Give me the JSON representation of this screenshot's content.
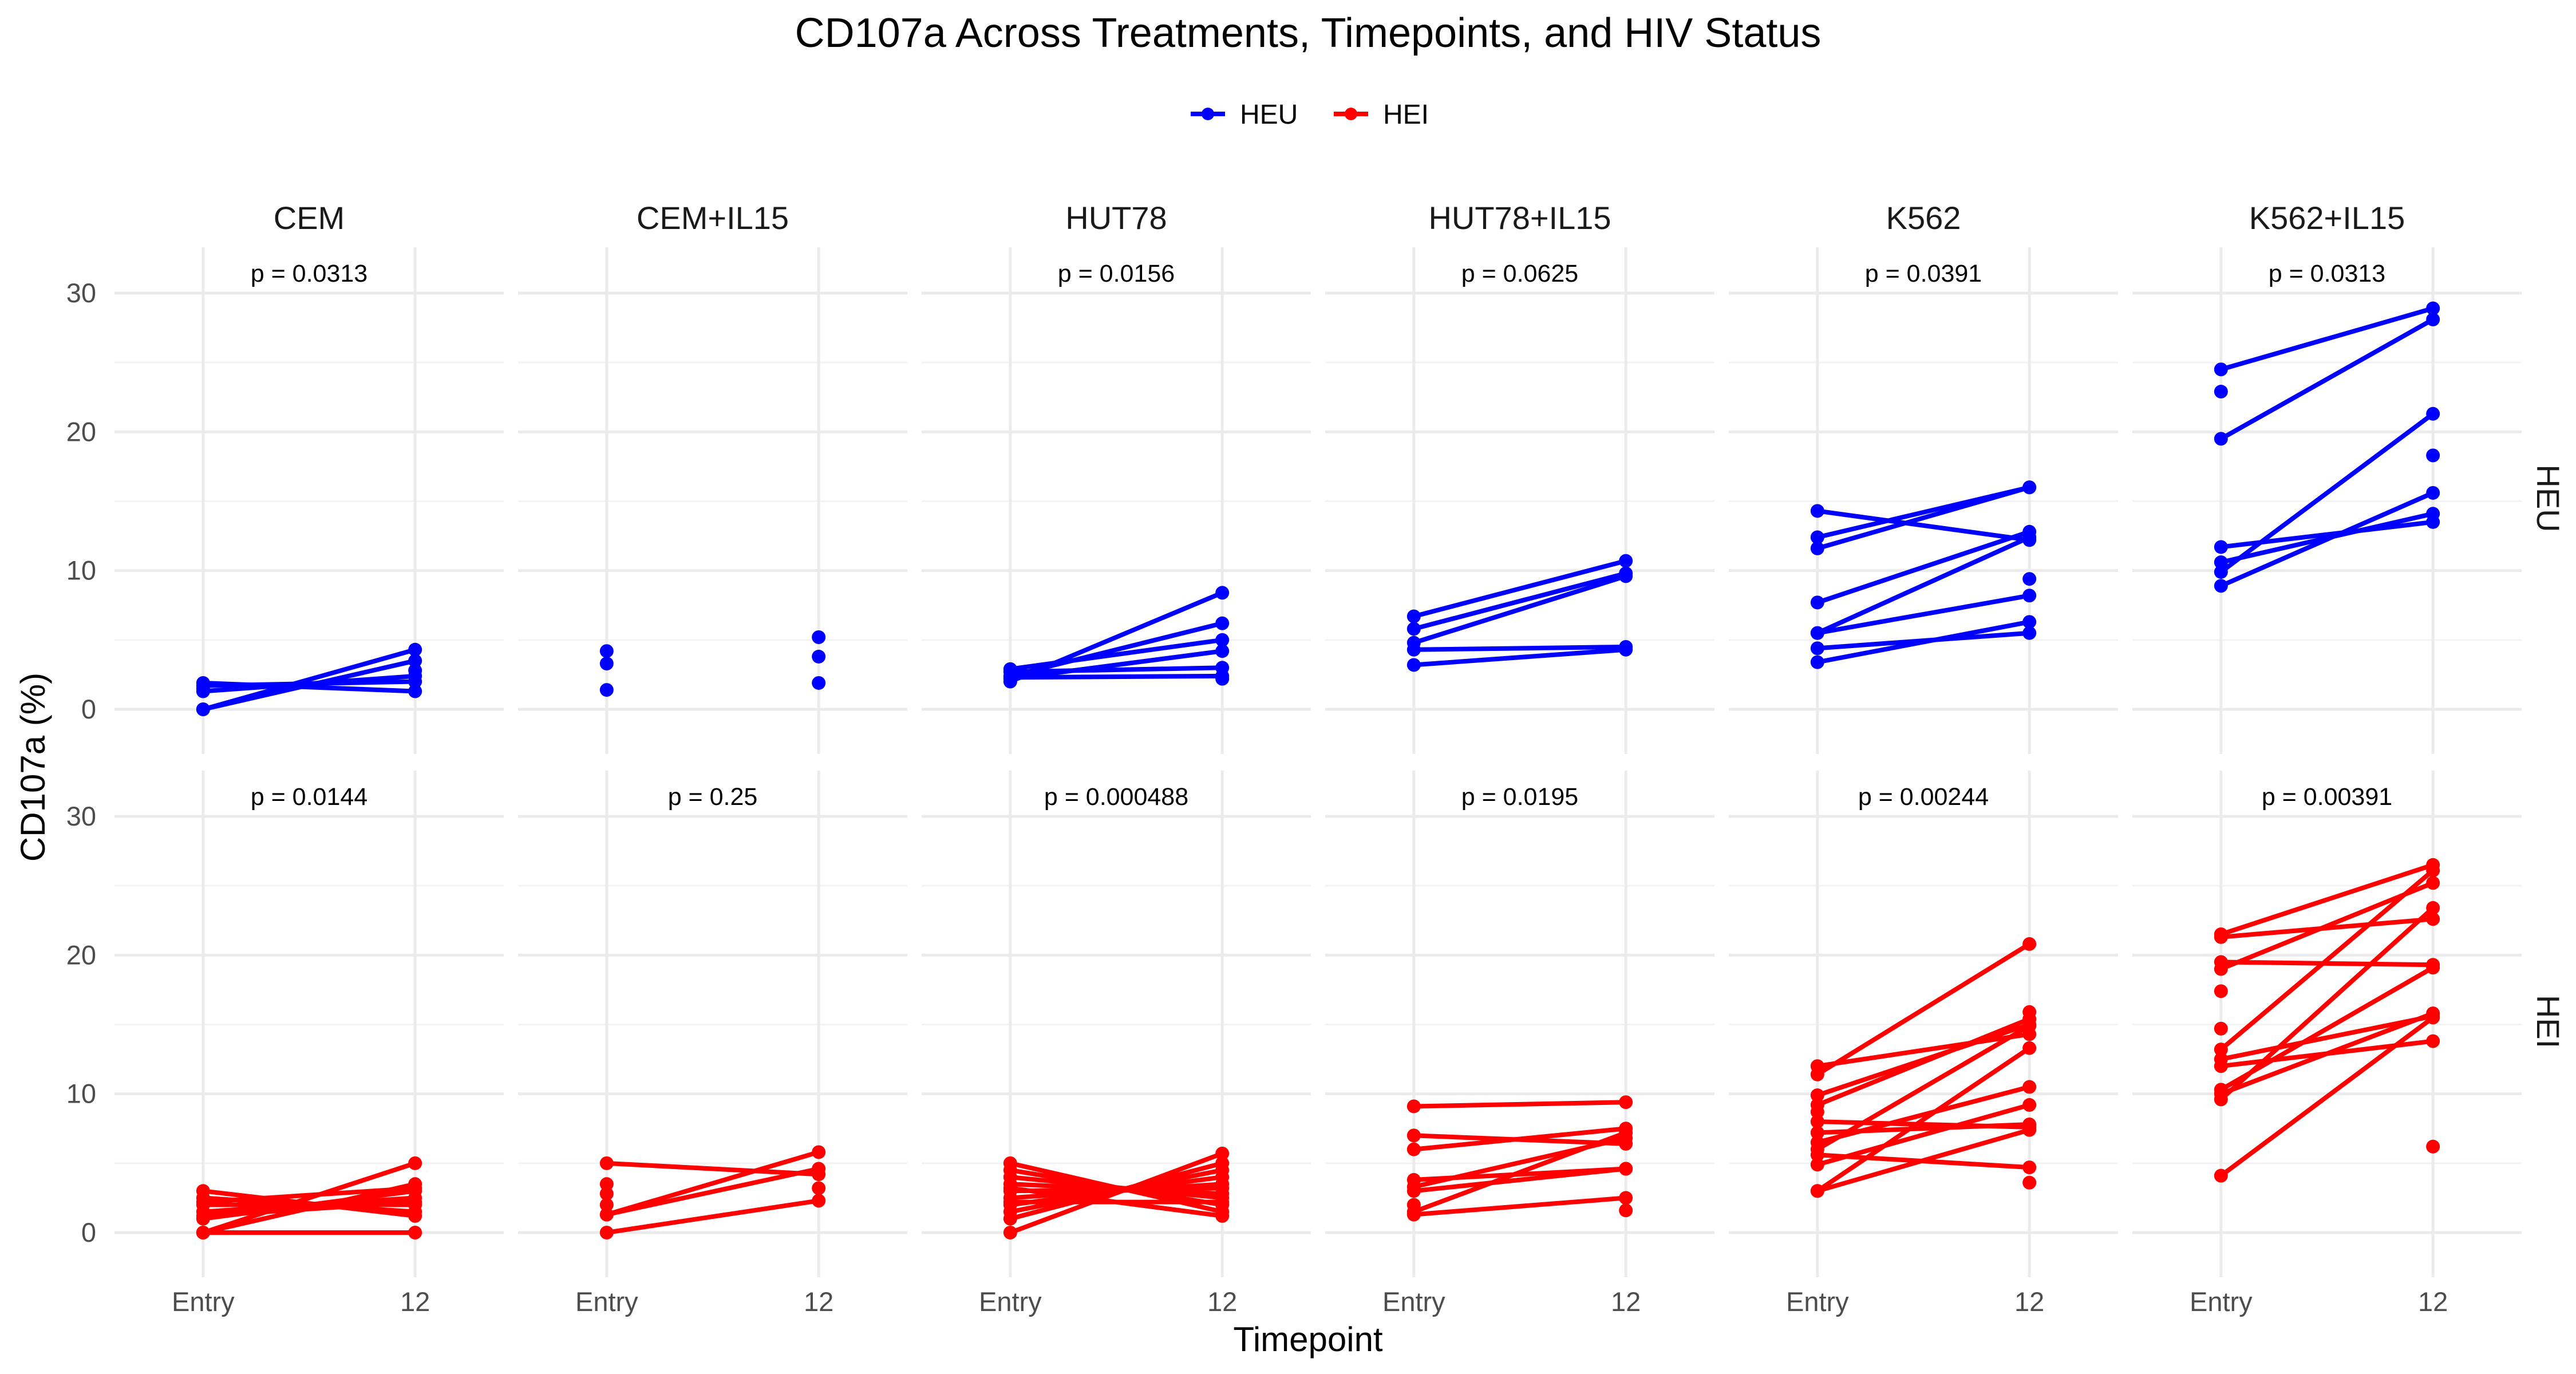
{
  "chart_data": {
    "type": "line",
    "title": "CD107a Across Treatments, Timepoints, and HIV Status",
    "xlabel": "Timepoint",
    "ylabel": "CD107a (%)",
    "x_categories": [
      "Entry",
      "12"
    ],
    "ylim": [
      0,
      30
    ],
    "y_ticks": [
      0,
      10,
      20,
      30
    ],
    "grid": true,
    "legend_position": "top",
    "legend": [
      {
        "name": "HEU",
        "color": "#0000ff"
      },
      {
        "name": "HEI",
        "color": "#ff0000"
      }
    ],
    "facet_columns": [
      "CEM",
      "CEM+IL15",
      "HUT78",
      "HUT78+IL15",
      "K562",
      "K562+IL15"
    ],
    "facet_rows": [
      "HEU",
      "HEI"
    ],
    "panels": [
      {
        "treatment": "CEM",
        "group": "HEU",
        "p_value": "p = 0.0313",
        "pairs": [
          [
            0.0,
            4.3
          ],
          [
            0.0,
            3.5
          ],
          [
            1.3,
            2.4
          ],
          [
            1.7,
            2.0
          ],
          [
            1.9,
            1.3
          ]
        ],
        "entry_only": [
          1.5
        ],
        "end_only": [
          2.8
        ]
      },
      {
        "treatment": "CEM+IL15",
        "group": "HEU",
        "p_value": "",
        "pairs": [],
        "entry_only": [
          4.2,
          3.3,
          1.4
        ],
        "end_only": [
          5.2,
          3.8,
          1.9
        ]
      },
      {
        "treatment": "HUT78",
        "group": "HEU",
        "p_value": "p = 0.0156",
        "pairs": [
          [
            2.0,
            8.4
          ],
          [
            2.4,
            6.2
          ],
          [
            2.9,
            5.0
          ],
          [
            2.2,
            4.2
          ],
          [
            2.7,
            3.0
          ],
          [
            2.3,
            2.4
          ]
        ],
        "entry_only": [],
        "end_only": [
          2.2
        ]
      },
      {
        "treatment": "HUT78+IL15",
        "group": "HEU",
        "p_value": "p = 0.0625",
        "pairs": [
          [
            6.7,
            10.7
          ],
          [
            5.8,
            9.8
          ],
          [
            4.8,
            9.6
          ],
          [
            4.3,
            4.5
          ],
          [
            3.2,
            4.3
          ]
        ],
        "entry_only": [],
        "end_only": []
      },
      {
        "treatment": "K562",
        "group": "HEU",
        "p_value": "p = 0.0391",
        "pairs": [
          [
            14.3,
            12.2
          ],
          [
            12.4,
            16.0
          ],
          [
            11.6,
            16.0
          ],
          [
            7.7,
            12.8
          ],
          [
            5.5,
            12.4
          ],
          [
            5.5,
            8.2
          ],
          [
            4.4,
            5.5
          ],
          [
            3.4,
            6.3
          ]
        ],
        "entry_only": [],
        "end_only": [
          9.4
        ]
      },
      {
        "treatment": "K562+IL15",
        "group": "HEU",
        "p_value": "p = 0.0313",
        "pairs": [
          [
            24.5,
            28.9
          ],
          [
            19.5,
            28.1
          ],
          [
            11.7,
            13.5
          ],
          [
            10.6,
            14.1
          ],
          [
            9.9,
            21.3
          ],
          [
            8.9,
            15.6
          ]
        ],
        "entry_only": [
          22.9
        ],
        "end_only": [
          18.3
        ]
      },
      {
        "treatment": "CEM",
        "group": "HEI",
        "p_value": "p = 0.0144",
        "pairs": [
          [
            0.0,
            5.0
          ],
          [
            0.0,
            3.5
          ],
          [
            1.0,
            3.0
          ],
          [
            1.5,
            2.5
          ],
          [
            2.0,
            2.0
          ],
          [
            2.5,
            1.5
          ],
          [
            3.0,
            1.2
          ],
          [
            0.0,
            0.0
          ],
          [
            2.2,
            3.2
          ],
          [
            1.2,
            2.2
          ]
        ],
        "entry_only": [],
        "end_only": []
      },
      {
        "treatment": "CEM+IL15",
        "group": "HEI",
        "p_value": "p = 0.25",
        "pairs": [
          [
            5.0,
            4.2
          ],
          [
            1.3,
            5.8
          ],
          [
            1.3,
            4.6
          ],
          [
            0.0,
            2.3
          ]
        ],
        "entry_only": [
          3.5,
          2.8,
          2.0
        ],
        "end_only": [
          3.2
        ]
      },
      {
        "treatment": "HUT78",
        "group": "HEI",
        "p_value": "p = 0.000488",
        "pairs": [
          [
            0.0,
            5.7
          ],
          [
            1.0,
            5.0
          ],
          [
            1.5,
            4.5
          ],
          [
            2.0,
            4.0
          ],
          [
            2.5,
            3.5
          ],
          [
            3.0,
            3.2
          ],
          [
            3.5,
            2.8
          ],
          [
            4.0,
            2.5
          ],
          [
            4.5,
            2.0
          ],
          [
            5.0,
            1.5
          ],
          [
            3.2,
            1.2
          ],
          [
            2.2,
            2.2
          ]
        ],
        "entry_only": [],
        "end_only": []
      },
      {
        "treatment": "HUT78+IL15",
        "group": "HEI",
        "p_value": "p = 0.0195",
        "pairs": [
          [
            9.1,
            9.4
          ],
          [
            7.0,
            6.4
          ],
          [
            6.0,
            7.5
          ],
          [
            3.8,
            4.6
          ],
          [
            3.3,
            6.8
          ],
          [
            3.0,
            4.6
          ],
          [
            1.5,
            7.2
          ],
          [
            1.3,
            2.5
          ]
        ],
        "entry_only": [
          2.0
        ],
        "end_only": [
          1.6
        ]
      },
      {
        "treatment": "K562",
        "group": "HEI",
        "p_value": "p = 0.00244",
        "pairs": [
          [
            12.0,
            14.3
          ],
          [
            11.4,
            20.8
          ],
          [
            9.9,
            15.0
          ],
          [
            9.2,
            15.4
          ],
          [
            8.0,
            7.6
          ],
          [
            7.2,
            7.8
          ],
          [
            6.5,
            10.5
          ],
          [
            6.0,
            14.9
          ],
          [
            5.6,
            4.7
          ],
          [
            4.9,
            9.2
          ],
          [
            3.0,
            13.3
          ],
          [
            3.0,
            7.4
          ]
        ],
        "entry_only": [
          8.7
        ],
        "end_only": [
          15.9,
          3.6
        ]
      },
      {
        "treatment": "K562+IL15",
        "group": "HEI",
        "p_value": "p = 0.00391",
        "pairs": [
          [
            21.5,
            26.5
          ],
          [
            21.3,
            22.6
          ],
          [
            19.5,
            19.3
          ],
          [
            19.0,
            25.2
          ],
          [
            13.2,
            26.1
          ],
          [
            12.5,
            15.6
          ],
          [
            12.0,
            13.8
          ],
          [
            10.3,
            19.1
          ],
          [
            10.0,
            15.8
          ],
          [
            9.6,
            23.4
          ],
          [
            4.1,
            15.5
          ]
        ],
        "entry_only": [
          17.4,
          14.7
        ],
        "end_only": [
          6.2
        ]
      }
    ]
  }
}
